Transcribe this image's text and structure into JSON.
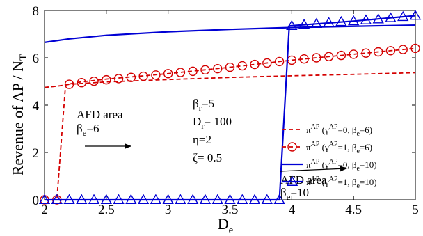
{
  "chart_data": {
    "type": "line",
    "xlim": [
      2,
      5
    ],
    "ylim": [
      0,
      8
    ],
    "grid": false,
    "legend_position": "bottom-right",
    "xlabel": {
      "base": "D",
      "sub": "e"
    },
    "ylabel": {
      "main": "Revenue of AP / N",
      "sub": "T"
    },
    "x_ticks": [
      "2",
      "2.5",
      "3",
      "3.5",
      "4",
      "4.5",
      "5"
    ],
    "x_tick_values": [
      2,
      2.5,
      3,
      3.5,
      4,
      4.5,
      5
    ],
    "y_ticks": [
      "0",
      "2",
      "4",
      "6",
      "8"
    ],
    "y_tick_values": [
      0,
      2,
      4,
      6,
      8
    ],
    "series": [
      {
        "legend": {
          "pre": "π",
          "sup": "AP",
          "mid": "(γ",
          "sup2": "AP",
          "rest": "=0, β",
          "sub": "e",
          "tail": "=6)"
        },
        "color": "#d40000",
        "style": "dashed",
        "marker": "none",
        "x": [
          2.0,
          2.1,
          2.17,
          2.2,
          2.5,
          3.0,
          3.5,
          4.0,
          4.5,
          5.0
        ],
        "y": [
          4.75,
          4.8,
          4.85,
          4.88,
          4.98,
          5.08,
          5.17,
          5.24,
          5.3,
          5.37
        ]
      },
      {
        "legend": {
          "pre": "π",
          "sup": "AP",
          "mid": "(γ",
          "sup2": "AP",
          "rest": "=1, β",
          "sub": "e",
          "tail": "=6)"
        },
        "color": "#d40000",
        "style": "dashed",
        "marker": "circle",
        "x": [
          2.0,
          2.1,
          2.17,
          2.25,
          2.5,
          3.0,
          3.5,
          4.0,
          4.5,
          5.0
        ],
        "y": [
          0.0,
          0.0,
          4.85,
          4.95,
          5.1,
          5.33,
          5.6,
          5.9,
          6.15,
          6.4
        ],
        "marker_x": [
          2.0,
          2.1,
          2.2,
          2.3,
          2.4,
          2.5,
          2.6,
          2.7,
          2.8,
          2.9,
          3.0,
          3.1,
          3.2,
          3.3,
          3.4,
          3.5,
          3.6,
          3.7,
          3.8,
          3.9,
          4.0,
          4.1,
          4.2,
          4.3,
          4.4,
          4.5,
          4.6,
          4.7,
          4.8,
          4.9,
          5.0
        ],
        "marker_y": [
          0.0,
          0.0,
          4.88,
          4.95,
          5.01,
          5.07,
          5.12,
          5.17,
          5.22,
          5.27,
          5.33,
          5.38,
          5.43,
          5.49,
          5.54,
          5.6,
          5.66,
          5.72,
          5.78,
          5.84,
          5.9,
          5.95,
          6.0,
          6.05,
          6.1,
          6.15,
          6.2,
          6.25,
          6.3,
          6.35,
          6.4
        ]
      },
      {
        "legend": {
          "pre": "π",
          "sup": "AP",
          "mid": "(γ",
          "sup2": "AP",
          "rest": "=0, β",
          "sub": "e",
          "tail": "=10)"
        },
        "color": "#0000d4",
        "style": "solid",
        "marker": "none",
        "x": [
          2.0,
          2.2,
          2.5,
          3.0,
          3.5,
          4.0,
          4.5,
          5.0
        ],
        "y": [
          6.65,
          6.8,
          6.95,
          7.1,
          7.2,
          7.28,
          7.33,
          7.38
        ]
      },
      {
        "legend": {
          "pre": "π",
          "sup": "AP",
          "mid": "(γ",
          "sup2": "AP",
          "rest": "=1, β",
          "sub": "e",
          "tail": "=10)"
        },
        "color": "#0000d4",
        "style": "solid",
        "marker": "triangle",
        "x": [
          2.0,
          3.9,
          3.98,
          4.5,
          5.0
        ],
        "y": [
          0.0,
          0.0,
          7.35,
          7.55,
          7.78
        ],
        "marker_x": [
          2.0,
          2.1,
          2.2,
          2.3,
          2.4,
          2.5,
          2.6,
          2.7,
          2.8,
          2.9,
          3.0,
          3.1,
          3.2,
          3.3,
          3.4,
          3.5,
          3.6,
          3.7,
          3.8,
          3.9,
          4.0,
          4.1,
          4.2,
          4.3,
          4.4,
          4.5,
          4.6,
          4.7,
          4.8,
          4.9,
          5.0
        ],
        "marker_y": [
          0,
          0,
          0,
          0,
          0,
          0,
          0,
          0,
          0,
          0,
          0,
          0,
          0,
          0,
          0,
          0,
          0,
          0,
          0,
          0,
          7.35,
          7.4,
          7.44,
          7.48,
          7.52,
          7.55,
          7.59,
          7.63,
          7.68,
          7.73,
          7.78
        ]
      }
    ],
    "annotations": {
      "afd6": {
        "line1": "AFD area",
        "beta": "β",
        "sub": "e",
        "val": "=6"
      },
      "afd10": {
        "line1": "AFD area",
        "beta": "β",
        "sub": "e",
        "val": "=10"
      },
      "params": [
        {
          "sym": "β",
          "sub": "r",
          "val": "=5"
        },
        {
          "sym": "D",
          "sub": "r",
          "val": "= 100"
        },
        {
          "sym": "η",
          "sub": "",
          "val": "=2"
        },
        {
          "sym": "ζ",
          "sub": "",
          "val": "= 0.5"
        }
      ]
    }
  }
}
